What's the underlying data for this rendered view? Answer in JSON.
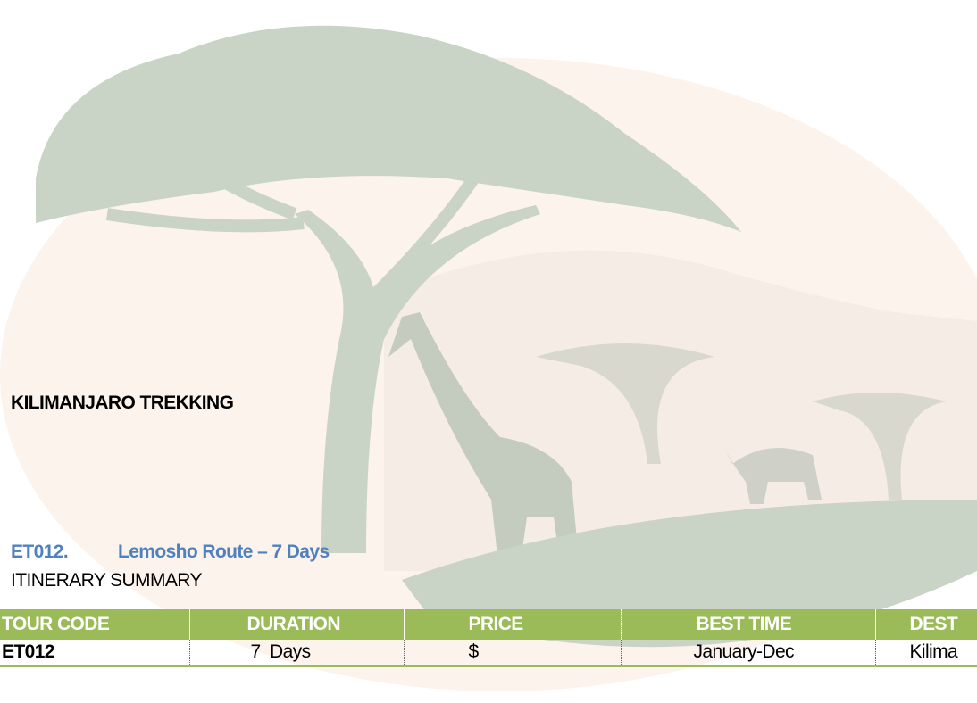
{
  "header": {
    "title": "KILIMANJARO TREKKING"
  },
  "tour": {
    "code": "ET012.",
    "name": "Lemosho Route – 7 Days",
    "subtitle": "ITINERARY SUMMARY"
  },
  "table": {
    "headers": [
      "TOUR CODE",
      "DURATION",
      "PRICE",
      "BEST TIME",
      "DEST"
    ],
    "rows": [
      [
        "ET012",
        "7  Days",
        "$",
        "January-Dec",
        "Kilima"
      ]
    ]
  }
}
